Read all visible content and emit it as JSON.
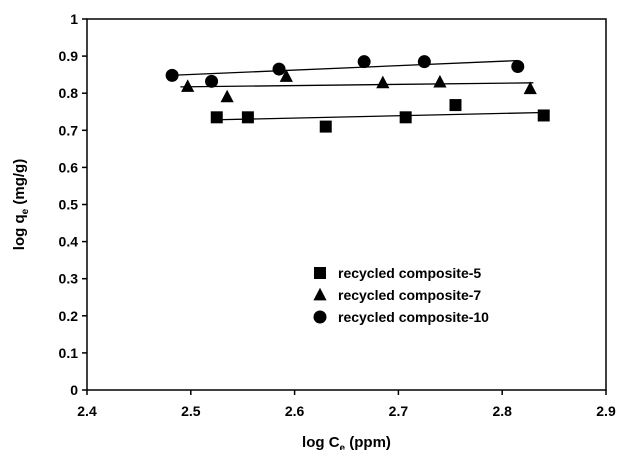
{
  "chart_data": {
    "type": "scatter",
    "xlabel": "log C",
    "xlabel_sub": "e",
    "xlabel_unit": " (ppm)",
    "ylabel": "log q",
    "ylabel_sub": "e",
    "ylabel_unit": " (mg/g)",
    "xlim": [
      2.4,
      2.9
    ],
    "ylim": [
      0,
      1
    ],
    "xticks": [
      "2.4",
      "2.5",
      "2.6",
      "2.7",
      "2.8",
      "2.9"
    ],
    "yticks": [
      "0",
      "0.1",
      "0.2",
      "0.3",
      "0.4",
      "0.5",
      "0.6",
      "0.7",
      "0.8",
      "0.9",
      "1"
    ],
    "grid": false,
    "legend_position": "bottom-center",
    "series": [
      {
        "name": "recycled composite-5",
        "marker": "square",
        "color": "#000000",
        "x": [
          2.525,
          2.555,
          2.63,
          2.707,
          2.755,
          2.84
        ],
        "y": [
          0.735,
          0.735,
          0.71,
          0.735,
          0.768,
          0.74
        ],
        "trendline": {
          "x": [
            2.52,
            2.84
          ],
          "y": [
            0.728,
            0.748
          ]
        }
      },
      {
        "name": "recycled composite-7",
        "marker": "triangle",
        "color": "#000000",
        "x": [
          2.497,
          2.535,
          2.592,
          2.685,
          2.74,
          2.827
        ],
        "y": [
          0.818,
          0.79,
          0.845,
          0.828,
          0.83,
          0.812
        ],
        "trendline": {
          "x": [
            2.49,
            2.83
          ],
          "y": [
            0.817,
            0.828
          ]
        }
      },
      {
        "name": "recycled composite-10",
        "marker": "circle",
        "color": "#000000",
        "x": [
          2.482,
          2.52,
          2.585,
          2.667,
          2.725,
          2.815
        ],
        "y": [
          0.848,
          0.832,
          0.865,
          0.885,
          0.885,
          0.872
        ],
        "trendline": {
          "x": [
            2.48,
            2.815
          ],
          "y": [
            0.848,
            0.888
          ]
        }
      }
    ]
  }
}
